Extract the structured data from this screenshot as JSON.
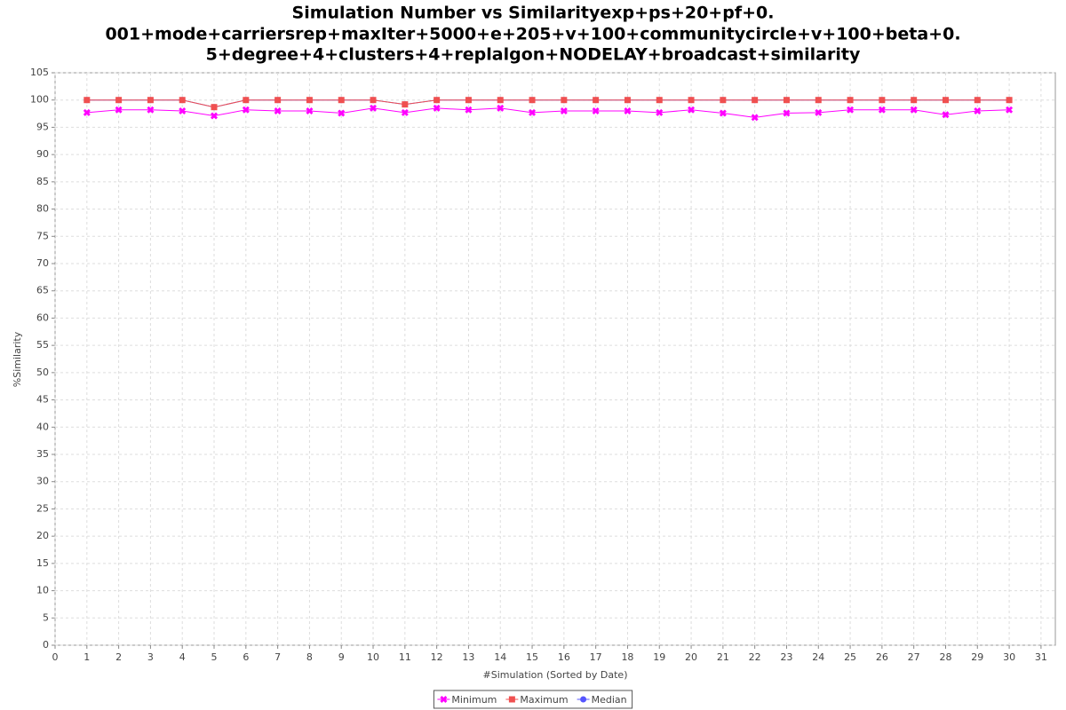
{
  "chart_data": {
    "type": "line",
    "title": [
      "Simulation Number vs Similarityexp+ps+20+pf+0.",
      "001+mode+carriersrep+maxIter+5000+e+205+v+100+communitycircle+v+100+beta+0.",
      "5+degree+4+clusters+4+replalgon+NODELAY+broadcast+similarity"
    ],
    "x_label": "#Simulation (Sorted by Date)",
    "y_label": "%Similarity",
    "x": [
      1,
      2,
      3,
      4,
      5,
      6,
      7,
      8,
      9,
      10,
      11,
      12,
      13,
      14,
      15,
      16,
      17,
      18,
      19,
      20,
      21,
      22,
      23,
      24,
      25,
      26,
      27,
      28,
      29,
      30
    ],
    "series": [
      {
        "name": "Minimum",
        "color": "#ff00ff",
        "shape": "x",
        "values": [
          97.7,
          98.2,
          98.2,
          98.0,
          97.1,
          98.2,
          98.0,
          98.0,
          97.6,
          98.5,
          97.7,
          98.5,
          98.2,
          98.5,
          97.7,
          98.0,
          98.0,
          98.0,
          97.7,
          98.2,
          97.6,
          96.8,
          97.6,
          97.7,
          98.2,
          98.2,
          98.2,
          97.3,
          98.0,
          98.2
        ]
      },
      {
        "name": "Maximum",
        "color": "#f05050",
        "shape": "square",
        "values": [
          100,
          100,
          100,
          100,
          98.7,
          100,
          100,
          100,
          100,
          100,
          99.2,
          100,
          100,
          100,
          100,
          100,
          100,
          100,
          100,
          100,
          100,
          100,
          100,
          100,
          100,
          100,
          100,
          100,
          100,
          100
        ]
      },
      {
        "name": "Median",
        "color": "#5555ff",
        "shape": "circle",
        "values": [
          100,
          100,
          100,
          100,
          98.7,
          100,
          100,
          100,
          100,
          100,
          99.2,
          100,
          100,
          100,
          100,
          100,
          100,
          100,
          100,
          100,
          100,
          100,
          100,
          100,
          100,
          100,
          100,
          100,
          100,
          100
        ]
      }
    ],
    "xlim": [
      0,
      31.45
    ],
    "xticks": [
      0,
      1,
      2,
      3,
      4,
      5,
      6,
      7,
      8,
      9,
      10,
      11,
      12,
      13,
      14,
      15,
      16,
      17,
      18,
      19,
      20,
      21,
      22,
      23,
      24,
      25,
      26,
      27,
      28,
      29,
      30,
      31
    ],
    "ylim": [
      0,
      105
    ],
    "yticks": [
      0,
      5,
      10,
      15,
      20,
      25,
      30,
      35,
      40,
      45,
      50,
      55,
      60,
      65,
      70,
      75,
      80,
      85,
      90,
      95,
      100,
      105
    ],
    "grid": true,
    "legend": "bottom"
  }
}
